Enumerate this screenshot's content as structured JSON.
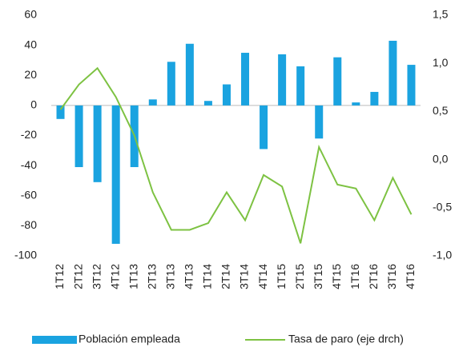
{
  "chart_data": {
    "type": "bar_line",
    "categories": [
      "1T12",
      "2T12",
      "3T12",
      "4T12",
      "1T13",
      "2T13",
      "3T13",
      "4T13",
      "1T14",
      "2T14",
      "3T14",
      "4T14",
      "1T15",
      "2T15",
      "3T15",
      "4T15",
      "1T16",
      "2T16",
      "3T16",
      "4T16"
    ],
    "series": [
      {
        "name": "Población empleada",
        "type": "bar",
        "color": "#1aa3e0",
        "values": [
          -9,
          -41,
          -51,
          -92,
          -41,
          4,
          29,
          41,
          3,
          14,
          35,
          -29,
          34,
          26,
          -22,
          32,
          2,
          9,
          43,
          27
        ]
      },
      {
        "name": "Tasa de paro (eje drch)",
        "type": "line",
        "axis": "y2",
        "color": "#7dc242",
        "values": [
          0.52,
          0.78,
          0.95,
          0.65,
          0.25,
          -0.34,
          -0.73,
          -0.73,
          -0.66,
          -0.34,
          -0.63,
          -0.16,
          -0.28,
          -0.87,
          0.13,
          -0.26,
          -0.3,
          -0.63,
          -0.19,
          -0.57
        ]
      }
    ],
    "ylim": [
      -100,
      60
    ],
    "yticks": [
      -100,
      -80,
      -60,
      -40,
      -20,
      0,
      20,
      40,
      60
    ],
    "y2lim": [
      -1.0,
      1.5
    ],
    "y2ticks": [
      {
        "value": -1.0,
        "label": "-1,0"
      },
      {
        "value": -0.5,
        "label": "-0,5"
      },
      {
        "value": 0,
        "label": "0,0"
      },
      {
        "value": 0.5,
        "label": "0,5"
      },
      {
        "value": 1.0,
        "label": "1,0"
      },
      {
        "value": 1.5,
        "label": "1,5"
      }
    ],
    "grid": false,
    "legend": "bottom"
  }
}
